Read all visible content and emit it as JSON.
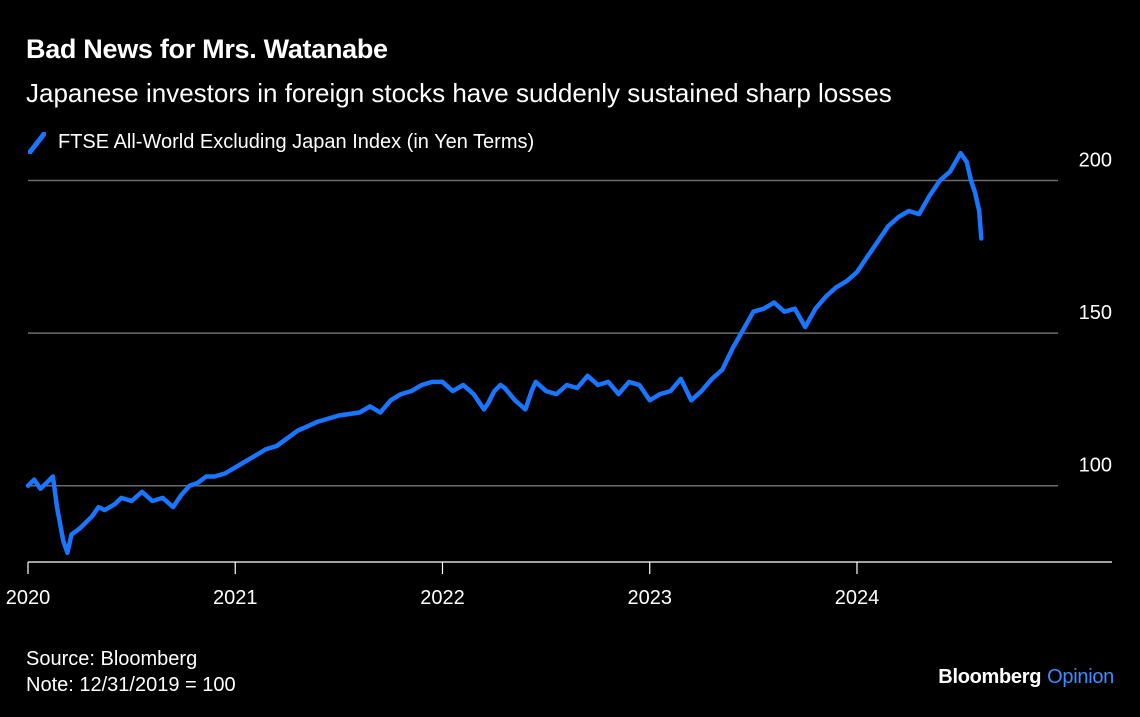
{
  "header": {
    "title": "Bad News for Mrs. Watanabe",
    "subtitle": "Japanese investors in foreign stocks have suddenly sustained sharp losses"
  },
  "footer": {
    "source": "Source: Bloomberg",
    "note": "Note: 12/31/2019 = 100"
  },
  "brand": {
    "name": "Bloomberg",
    "suffix": "Opinion",
    "suffix_color": "#3f8cff"
  },
  "colors": {
    "background": "#000000",
    "line": "#1a75ff",
    "grid": "#6b6b6b",
    "text": "#ffffff"
  },
  "chart_data": {
    "type": "line",
    "grid": true,
    "y_axis_position": "right",
    "ylim": [
      75,
      210
    ],
    "yticks": [
      100,
      150,
      200
    ],
    "xlim": [
      2020.0,
      2024.97
    ],
    "xticks": [
      {
        "value": 2020,
        "label": "2020"
      },
      {
        "value": 2021,
        "label": "2021"
      },
      {
        "value": 2022,
        "label": "2022"
      },
      {
        "value": 2023,
        "label": "2023"
      },
      {
        "value": 2024,
        "label": "2024"
      }
    ],
    "series": [
      {
        "name": "FTSE All-World Excluding Japan Index (in Yen Terms)",
        "color": "#1a75ff",
        "x": [
          2020.0,
          2020.03,
          2020.06,
          2020.09,
          2020.12,
          2020.14,
          2020.17,
          2020.19,
          2020.21,
          2020.23,
          2020.25,
          2020.28,
          2020.31,
          2020.34,
          2020.37,
          2020.42,
          2020.45,
          2020.5,
          2020.55,
          2020.6,
          2020.65,
          2020.7,
          2020.74,
          2020.78,
          2020.82,
          2020.86,
          2020.9,
          2020.95,
          2021.0,
          2021.05,
          2021.1,
          2021.15,
          2021.2,
          2021.3,
          2021.4,
          2021.5,
          2021.6,
          2021.65,
          2021.7,
          2021.75,
          2021.8,
          2021.85,
          2021.9,
          2021.95,
          2022.0,
          2022.05,
          2022.1,
          2022.15,
          2022.2,
          2022.22,
          2022.25,
          2022.28,
          2022.3,
          2022.35,
          2022.4,
          2022.43,
          2022.45,
          2022.5,
          2022.55,
          2022.6,
          2022.65,
          2022.7,
          2022.75,
          2022.8,
          2022.85,
          2022.9,
          2022.95,
          2023.0,
          2023.05,
          2023.1,
          2023.15,
          2023.2,
          2023.25,
          2023.3,
          2023.35,
          2023.4,
          2023.45,
          2023.5,
          2023.55,
          2023.6,
          2023.65,
          2023.7,
          2023.75,
          2023.8,
          2023.85,
          2023.9,
          2023.95,
          2024.0,
          2024.05,
          2024.1,
          2024.15,
          2024.2,
          2024.25,
          2024.3,
          2024.35,
          2024.4,
          2024.45,
          2024.5,
          2024.53,
          2024.55,
          2024.57,
          2024.59,
          2024.6
        ],
        "values": [
          100,
          102,
          99,
          101,
          103,
          93,
          82,
          78,
          84,
          85,
          86,
          88,
          90,
          93,
          92,
          94,
          96,
          95,
          98,
          95,
          96,
          93,
          97,
          100,
          101,
          103,
          103,
          104,
          106,
          108,
          110,
          112,
          113,
          118,
          121,
          123,
          124,
          126,
          124,
          128,
          130,
          131,
          133,
          134,
          134,
          131,
          133,
          130,
          125,
          127,
          131,
          133,
          132,
          128,
          125,
          131,
          134,
          131,
          130,
          133,
          132,
          136,
          133,
          134,
          130,
          134,
          133,
          128,
          130,
          131,
          135,
          128,
          131,
          135,
          138,
          145,
          151,
          157,
          158,
          160,
          157,
          158,
          152,
          158,
          162,
          165,
          167,
          170,
          175,
          180,
          185,
          188,
          190,
          189,
          195,
          200,
          203,
          209,
          206,
          200,
          196,
          190,
          181
        ]
      }
    ]
  }
}
